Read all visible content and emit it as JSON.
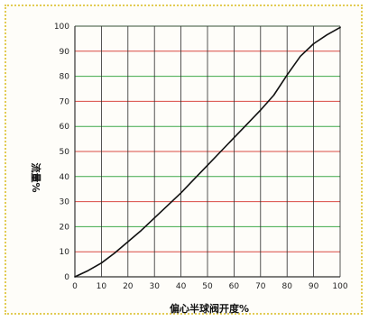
{
  "chart_data": {
    "type": "line",
    "xlabel": "偏心半球阀开度%",
    "ylabel": "流量%",
    "xlim": [
      0,
      100
    ],
    "ylim": [
      0,
      100
    ],
    "x_ticks": [
      "0",
      "10",
      "20",
      "30",
      "40",
      "50",
      "60",
      "70",
      "80",
      "90",
      "100"
    ],
    "y_ticks": [
      "0",
      "10",
      "20",
      "30",
      "40",
      "50",
      "60",
      "70",
      "80",
      "90",
      "100"
    ],
    "grid": true,
    "series": [
      {
        "x": [
          0,
          5,
          10,
          15,
          20,
          25,
          30,
          35,
          40,
          45,
          50,
          55,
          60,
          65,
          70,
          75,
          80,
          85,
          90,
          95,
          100
        ],
        "y": [
          0,
          2.5,
          5.5,
          9.5,
          14,
          18.5,
          23.5,
          28.5,
          33.5,
          39,
          44.5,
          50,
          55.5,
          61,
          66.5,
          72.5,
          80.5,
          88,
          93,
          96.5,
          99.5
        ],
        "color": "#111111"
      }
    ],
    "grid_colors": {
      "vertical": "#2b2b2b",
      "horizontal_odd": "#d94a43",
      "horizontal_even": "#3daa4a",
      "axis": "#333333"
    }
  }
}
